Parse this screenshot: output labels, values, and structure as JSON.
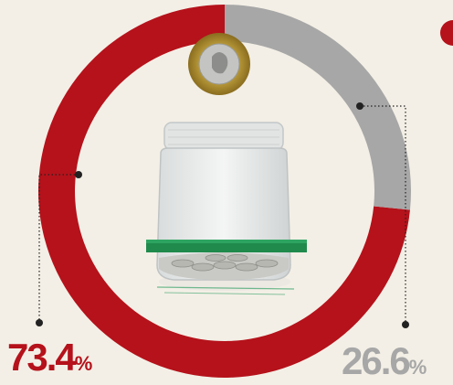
{
  "colors": {
    "background": "#f3efe6",
    "primary": "#b5121b",
    "secondary": "#a7a7a7"
  },
  "chart_data": {
    "type": "pie",
    "donut": true,
    "slices": [
      {
        "value": 73.4,
        "label": "73.4",
        "unit": "%",
        "color": "#b5121b"
      },
      {
        "value": 26.6,
        "label": "26.6",
        "unit": "%",
        "color": "#a7a7a7"
      }
    ],
    "title": ""
  },
  "illustration": {
    "center_image": "glass-jar-with-coins-icon",
    "coin_image": "mexican-coin-icon"
  }
}
